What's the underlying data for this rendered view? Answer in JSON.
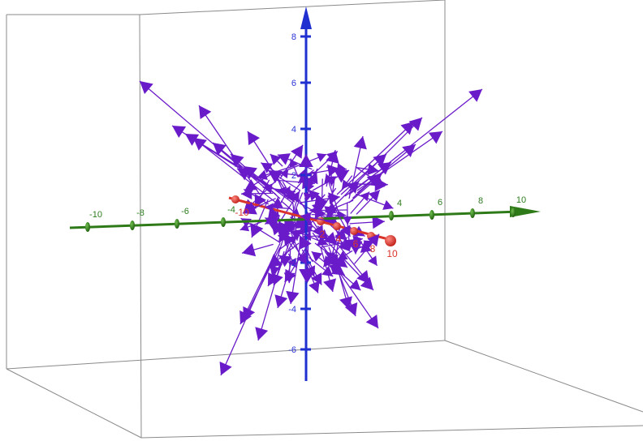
{
  "colors": {
    "background": "#ffffff",
    "box_edges": "#7a7a7a",
    "y_axis": "#1f2fd0",
    "y_labels": "#2a33d6",
    "x_axis": "#2f7a18",
    "x_labels": "#2e7d1f",
    "z_axis": "#d9342b",
    "z_labels": "#e0504a",
    "vectors": "#6a1bc9"
  },
  "axes": {
    "vertical": {
      "labels": [
        "8",
        "6",
        "4",
        "2",
        "-2",
        "-4",
        "-6"
      ]
    },
    "horizontal": {
      "labels": [
        "-10",
        "-8",
        "-6",
        "-4",
        "4",
        "6",
        "8",
        "10"
      ]
    },
    "depth": {
      "labels": [
        "-10",
        "2",
        "4",
        "6",
        "8",
        "10"
      ]
    }
  },
  "vector_field": {
    "description_visible": false
  }
}
